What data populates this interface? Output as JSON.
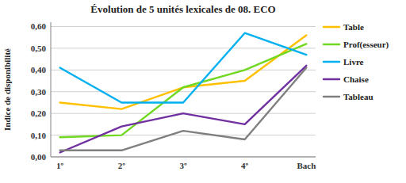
{
  "chart_data": {
    "type": "line",
    "title": "Évolution de 5 unités lexicales de 08. ECO",
    "ylabel": "Indice de disponibilité",
    "categories": [
      "1º",
      "2º",
      "3º",
      "4º",
      "Bach"
    ],
    "series": [
      {
        "name": "Table",
        "color": "#FFC000",
        "values": [
          0.25,
          0.22,
          0.32,
          0.35,
          0.56
        ]
      },
      {
        "name": "Prof(esseur)",
        "color": "#70D820",
        "values": [
          0.09,
          0.1,
          0.32,
          0.4,
          0.52
        ]
      },
      {
        "name": "Livre",
        "color": "#00B0F0",
        "values": [
          0.41,
          0.25,
          0.25,
          0.57,
          0.47
        ]
      },
      {
        "name": "Chaise",
        "color": "#7030A0",
        "values": [
          0.02,
          0.14,
          0.2,
          0.15,
          0.42
        ]
      },
      {
        "name": "Tableau",
        "color": "#7F7F7F",
        "values": [
          0.03,
          0.03,
          0.12,
          0.08,
          0.41
        ]
      }
    ],
    "ylim": [
      0.0,
      0.62
    ],
    "yticks": [
      {
        "value": 0.0,
        "label": "0,00"
      },
      {
        "value": 0.1,
        "label": "0,10"
      },
      {
        "value": 0.2,
        "label": "0,20"
      },
      {
        "value": 0.3,
        "label": "0,30"
      },
      {
        "value": 0.4,
        "label": "0,40"
      },
      {
        "value": 0.5,
        "label": "0,50"
      },
      {
        "value": 0.6,
        "label": "0,60"
      }
    ],
    "grid": true,
    "legend": "right"
  }
}
